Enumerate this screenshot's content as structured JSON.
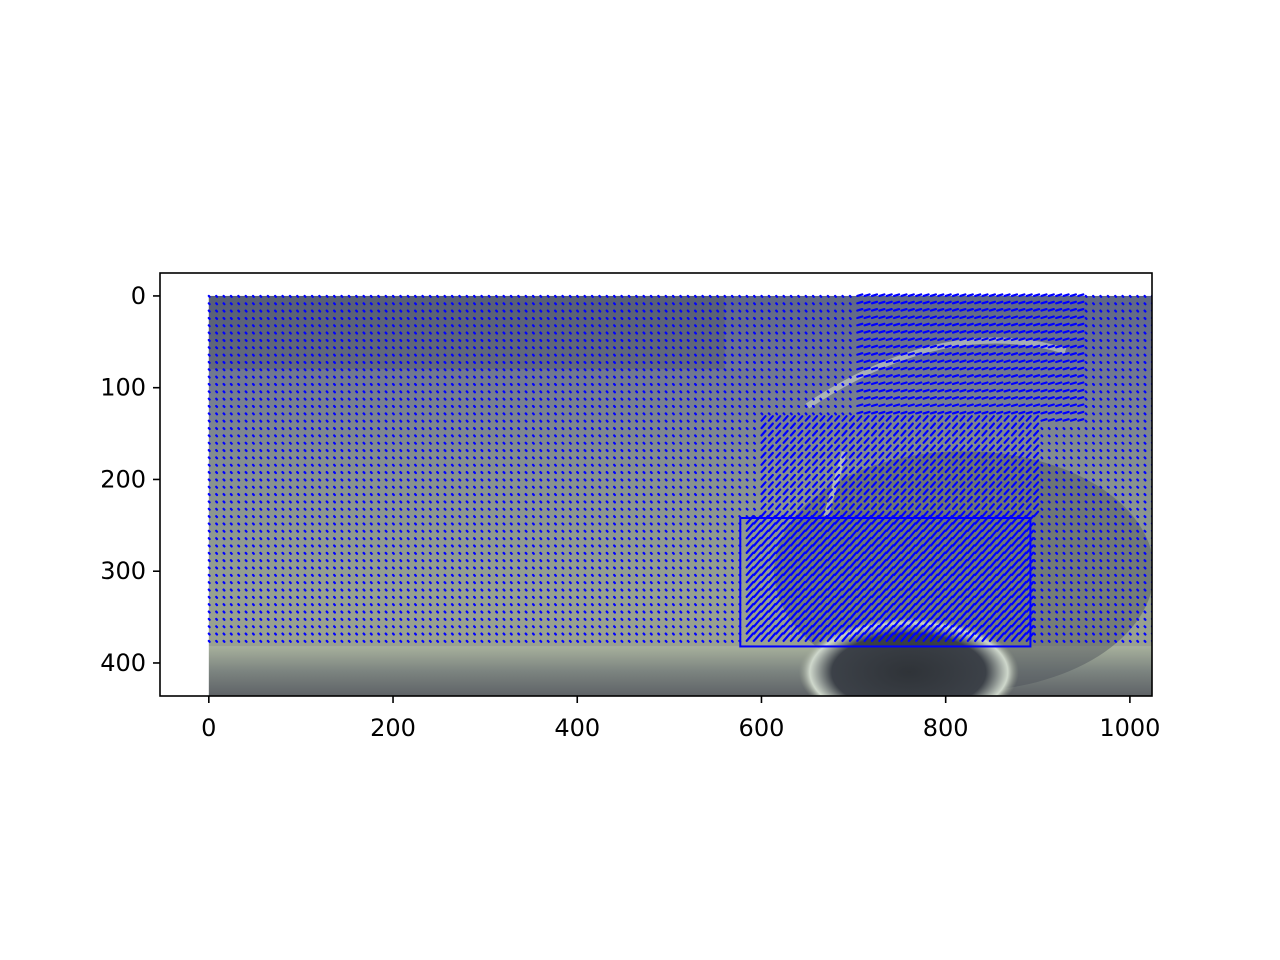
{
  "chart_data": {
    "type": "quiver",
    "title": "",
    "xlabel": "",
    "ylabel": "",
    "xlim": [
      -53,
      1024
    ],
    "ylim": [
      436,
      -25
    ],
    "x_ticks": [
      0,
      200,
      400,
      600,
      800,
      1000
    ],
    "y_ticks": [
      0,
      100,
      200,
      300,
      400
    ],
    "x_tick_labels": [
      "0",
      "200",
      "400",
      "600",
      "800",
      "1000"
    ],
    "y_tick_labels": [
      "0",
      "100",
      "200",
      "300",
      "400"
    ],
    "background": {
      "kind": "photo",
      "extent": {
        "x": [
          0,
          1024
        ],
        "y": [
          0,
          436
        ]
      },
      "colors": {
        "sky": "#6f7690",
        "midtone": "#8e9690",
        "ground": "#9aa190",
        "shadow": "#4b5058",
        "rim": "#d8e0d4"
      }
    },
    "vector_field": {
      "x_range": [
        0,
        1024
      ],
      "y_range": [
        0,
        380
      ],
      "grid_step": 8,
      "color": "#0000ff"
    },
    "region_box": {
      "x": [
        577,
        892
      ],
      "y": [
        242,
        382
      ],
      "color": "#0000ff"
    },
    "grid": false,
    "legend": "none"
  }
}
